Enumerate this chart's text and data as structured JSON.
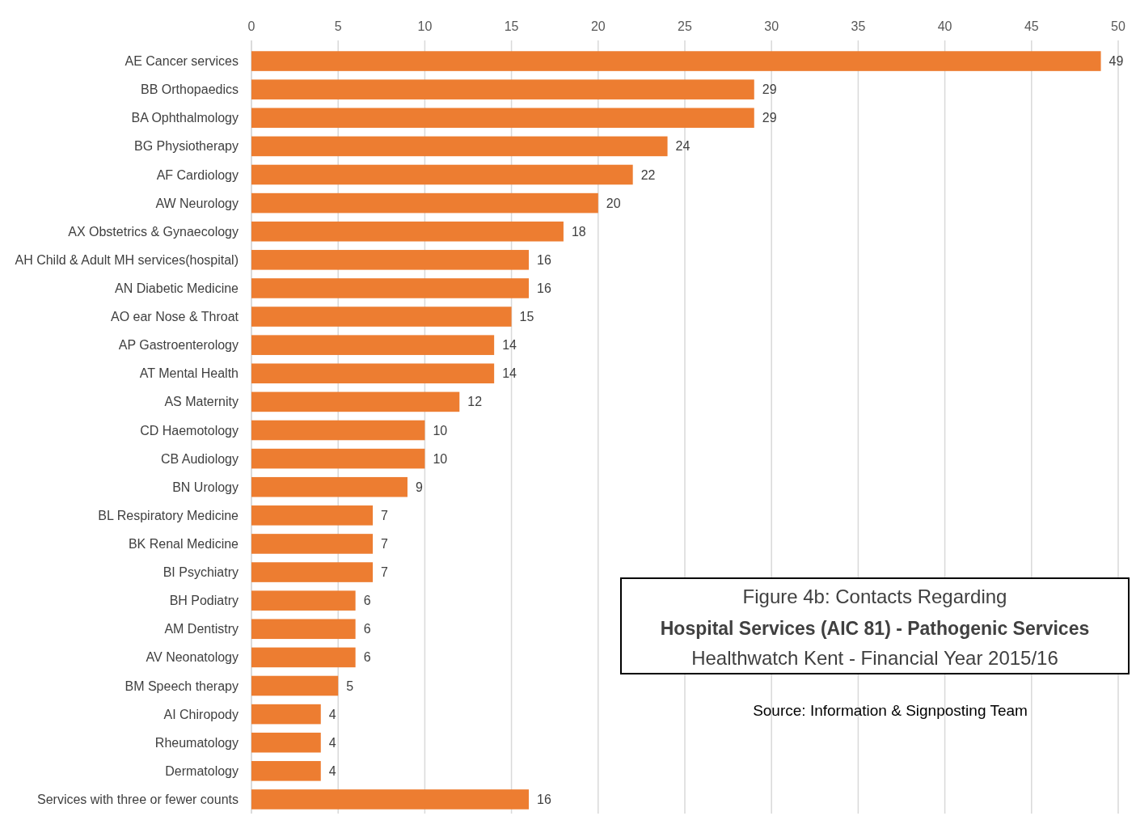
{
  "chart_data": {
    "type": "bar",
    "orientation": "horizontal",
    "title": "Figure 4b: Contacts Regarding",
    "subtitle": "Hospital Services (AIC 81) - Pathogenic Services",
    "annotations": [
      "Healthwatch Kent - Financial Year 2015/16",
      "Source: Information & Signposting Team"
    ],
    "categories": [
      "AE Cancer services",
      "BB Orthopaedics",
      "BA Ophthalmology",
      "BG Physiotherapy",
      "AF Cardiology",
      "AW Neurology",
      "AX Obstetrics & Gynaecology",
      "AH Child & Adult MH services(hospital)",
      "AN Diabetic Medicine",
      "AO ear Nose & Throat",
      "AP Gastroenterology",
      "AT Mental Health",
      "AS Maternity",
      "CD Haemotology",
      "CB Audiology",
      "BN Urology",
      "BL Respiratory Medicine",
      "BK Renal Medicine",
      "BI Psychiatry",
      "BH Podiatry",
      "AM Dentistry",
      "AV Neonatology",
      "BM Speech therapy",
      "AI Chiropody",
      "Rheumatology",
      "Dermatology",
      "Services with three or fewer counts"
    ],
    "values": [
      49,
      29,
      29,
      24,
      22,
      20,
      18,
      16,
      16,
      15,
      14,
      14,
      12,
      10,
      10,
      9,
      7,
      7,
      7,
      6,
      6,
      6,
      5,
      4,
      4,
      4,
      16
    ],
    "color": "#ed7d31",
    "xlim": [
      0,
      50
    ],
    "xticks": [
      0,
      5,
      10,
      15,
      20,
      25,
      30,
      35,
      40,
      45,
      50
    ],
    "grid": "x",
    "data_labels": true
  }
}
